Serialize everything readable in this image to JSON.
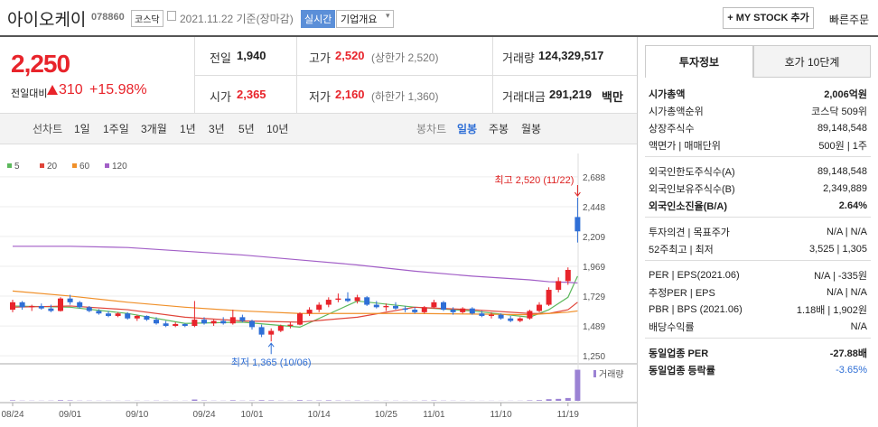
{
  "header": {
    "name": "아이오케이",
    "code": "078860",
    "market": "코스닥",
    "date": "2021.11.22 기준(장마감)",
    "realtime": "실시간",
    "overview": "기업개요",
    "mystock": "+ MY STOCK 추가",
    "quick_order": "빠른주문"
  },
  "price": {
    "current": "2,250",
    "change_label": "전일대비",
    "change": "310",
    "change_rate": "+15.98%"
  },
  "summary": {
    "prev": {
      "label": "전일",
      "value": "1,940"
    },
    "high": {
      "label": "고가",
      "value": "2,520",
      "note": "(상한가 2,520)"
    },
    "volume": {
      "label": "거래량",
      "value": "124,329,517"
    },
    "open": {
      "label": "시가",
      "value": "2,365"
    },
    "low": {
      "label": "저가",
      "value": "2,160",
      "note": "(하한가 1,360)"
    },
    "amount": {
      "label": "거래대금",
      "value": "291,219",
      "unit": "백만"
    }
  },
  "tabs": {
    "line": [
      "선차트",
      "1일",
      "1주일",
      "3개월",
      "1년",
      "3년",
      "5년",
      "10년"
    ],
    "candle": [
      "봉차트",
      "일봉",
      "주봉",
      "월봉"
    ]
  },
  "side": {
    "tabs": [
      "투자정보",
      "호가 10단계"
    ],
    "groups": [
      [
        [
          "시가총액",
          "2,006억원"
        ],
        [
          "시가총액순위",
          "코스닥 509위"
        ],
        [
          "상장주식수",
          "89,148,548"
        ],
        [
          "액면가 | 매매단위",
          "500원 | 1주"
        ]
      ],
      [
        [
          "외국인한도주식수(A)",
          "89,148,548"
        ],
        [
          "외국인보유주식수(B)",
          "2,349,889"
        ],
        [
          "외국인소진율(B/A)",
          "2.64%"
        ]
      ],
      [
        [
          "투자의견 | 목표주가",
          "N/A | N/A"
        ],
        [
          "52주최고 | 최저",
          "3,525 | 1,305"
        ]
      ],
      [
        [
          "PER | EPS(2021.06)",
          "N/A | -335원"
        ],
        [
          "추정PER | EPS",
          "N/A | N/A"
        ],
        [
          "PBR | BPS (2021.06)",
          "1.18배 | 1,902원"
        ],
        [
          "배당수익률",
          "N/A"
        ]
      ],
      [
        [
          "동일업종 PER",
          "-27.88배"
        ],
        [
          "동일업종 등락률",
          "-3.65%"
        ]
      ]
    ]
  },
  "chart_data": {
    "type": "candlestick",
    "categories": [
      "08/24",
      null,
      null,
      null,
      null,
      null,
      "09/01",
      null,
      null,
      null,
      null,
      null,
      null,
      "09/10",
      null,
      null,
      null,
      null,
      null,
      null,
      "09/24",
      null,
      null,
      null,
      null,
      "10/01",
      null,
      null,
      null,
      null,
      null,
      null,
      "10/14",
      null,
      null,
      null,
      null,
      null,
      null,
      "10/25",
      null,
      null,
      null,
      null,
      "11/01",
      null,
      null,
      null,
      null,
      null,
      null,
      "11/10",
      null,
      null,
      null,
      null,
      null,
      null,
      "11/19",
      null
    ],
    "open": [
      1620,
      1680,
      1640,
      1650,
      1630,
      1610,
      1710,
      1680,
      1640,
      1610,
      1590,
      1570,
      1590,
      1550,
      1570,
      1540,
      1510,
      1490,
      1505,
      1490,
      1540,
      1510,
      1530,
      1510,
      1560,
      1530,
      1480,
      1420,
      1450,
      1490,
      1500,
      1590,
      1620,
      1660,
      1700,
      1710,
      1690,
      1720,
      1660,
      1640,
      1650,
      1630,
      1620,
      1600,
      1640,
      1680,
      1620,
      1600,
      1630,
      1590,
      1570,
      1580,
      1550,
      1530,
      1550,
      1610,
      1660,
      1780,
      1850,
      2365
    ],
    "high": [
      1700,
      1690,
      1660,
      1670,
      1660,
      1720,
      1740,
      1690,
      1650,
      1625,
      1610,
      1600,
      1600,
      1580,
      1575,
      1560,
      1530,
      1520,
      1510,
      1690,
      1560,
      1540,
      1560,
      1620,
      1580,
      1540,
      1500,
      1470,
      1500,
      1520,
      1600,
      1640,
      1680,
      1720,
      1750,
      1760,
      1740,
      1730,
      1690,
      1670,
      1680,
      1650,
      1640,
      1650,
      1700,
      1690,
      1640,
      1640,
      1640,
      1610,
      1600,
      1590,
      1570,
      1560,
      1620,
      1680,
      1800,
      1880,
      1960,
      2520
    ],
    "low": [
      1600,
      1620,
      1610,
      1620,
      1600,
      1605,
      1660,
      1630,
      1600,
      1580,
      1560,
      1560,
      1540,
      1530,
      1530,
      1500,
      1480,
      1480,
      1480,
      1480,
      1500,
      1490,
      1500,
      1500,
      1520,
      1460,
      1400,
      1365,
      1440,
      1470,
      1495,
      1570,
      1600,
      1640,
      1680,
      1680,
      1670,
      1650,
      1630,
      1610,
      1620,
      1600,
      1590,
      1590,
      1630,
      1610,
      1580,
      1590,
      1580,
      1560,
      1550,
      1540,
      1520,
      1520,
      1540,
      1600,
      1650,
      1760,
      1820,
      2160
    ],
    "close": [
      1680,
      1640,
      1650,
      1630,
      1610,
      1710,
      1680,
      1640,
      1610,
      1590,
      1570,
      1590,
      1550,
      1570,
      1540,
      1510,
      1490,
      1505,
      1490,
      1540,
      1510,
      1530,
      1510,
      1560,
      1530,
      1480,
      1420,
      1450,
      1490,
      1500,
      1590,
      1620,
      1660,
      1700,
      1710,
      1690,
      1720,
      1660,
      1640,
      1650,
      1630,
      1620,
      1600,
      1640,
      1680,
      1620,
      1600,
      1630,
      1590,
      1570,
      1580,
      1550,
      1530,
      1550,
      1610,
      1660,
      1780,
      1850,
      1940,
      2250
    ],
    "up_color": "#e8242b",
    "down_color": "#2f6fd6",
    "ylim": [
      1207,
      2767
    ],
    "yticks": [
      {
        "value": 2688,
        "label": "2,688"
      },
      {
        "value": 2448,
        "label": "2,448"
      },
      {
        "value": 2209,
        "label": "2,209"
      },
      {
        "value": 1969,
        "label": "1,969"
      },
      {
        "value": 1729,
        "label": "1,729"
      },
      {
        "value": 1489,
        "label": "1,489"
      },
      {
        "value": 1250,
        "label": "1,250"
      }
    ],
    "series": [
      {
        "name": "5",
        "color": "#5cb85c",
        "x": [
          0,
          6,
          12,
          18,
          24,
          30,
          36,
          42,
          48,
          54,
          56,
          58,
          59
        ],
        "values": [
          1650,
          1640,
          1590,
          1510,
          1520,
          1480,
          1690,
          1640,
          1610,
          1560,
          1620,
          1720,
          1890
        ]
      },
      {
        "name": "20",
        "color": "#e0453a",
        "x": [
          0,
          6,
          12,
          18,
          24,
          30,
          36,
          42,
          48,
          54,
          56,
          58,
          59
        ],
        "values": [
          1640,
          1650,
          1620,
          1560,
          1530,
          1520,
          1560,
          1640,
          1620,
          1590,
          1590,
          1620,
          1680
        ]
      },
      {
        "name": "60",
        "color": "#f0902a",
        "x": [
          0,
          6,
          12,
          18,
          24,
          30,
          36,
          42,
          48,
          54,
          56,
          58,
          59
        ],
        "values": [
          1770,
          1730,
          1680,
          1640,
          1610,
          1590,
          1590,
          1590,
          1585,
          1580,
          1590,
          1600,
          1610
        ]
      },
      {
        "name": "120",
        "color": "#a25fc7",
        "x": [
          0,
          6,
          12,
          18,
          24,
          30,
          36,
          42,
          48,
          54,
          56,
          58,
          59
        ],
        "values": [
          2130,
          2130,
          2120,
          2090,
          2060,
          2020,
          1980,
          1930,
          1890,
          1860,
          1845,
          1840,
          1835
        ]
      }
    ],
    "high_label": "최고 2,520 (11/22)",
    "low_label": "최저 1,365 (10/06)",
    "volume": {
      "label": "거래량",
      "color": "#9b82d4",
      "ylim": [
        0,
        130000000
      ],
      "values": [
        2100000,
        900000,
        800000,
        700000,
        900000,
        2500000,
        1800000,
        900000,
        800000,
        600000,
        700000,
        500000,
        800000,
        700000,
        600000,
        900000,
        700000,
        500000,
        600000,
        5200000,
        1500000,
        800000,
        700000,
        2200000,
        900000,
        1200000,
        2500000,
        1800000,
        900000,
        700000,
        2600000,
        1500000,
        1400000,
        2000000,
        1200000,
        900000,
        1100000,
        800000,
        700000,
        600000,
        700000,
        500000,
        600000,
        1200000,
        1500000,
        900000,
        700000,
        600000,
        500000,
        400000,
        500000,
        400000,
        500000,
        600000,
        1800000,
        2600000,
        6500000,
        7800000,
        11200000,
        124329517
      ]
    }
  }
}
